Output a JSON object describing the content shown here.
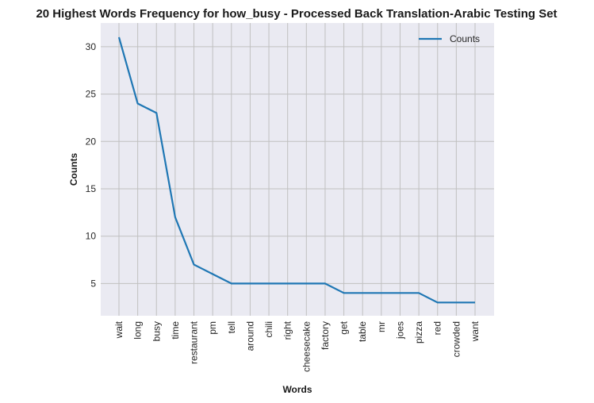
{
  "chart_data": {
    "type": "line",
    "title": "20 Highest Words Frequency for how_busy - Processed Back Translation-Arabic Testing Set",
    "xlabel": "Words",
    "ylabel": "Counts",
    "categories": [
      "wait",
      "long",
      "busy",
      "time",
      "restaurant",
      "pm",
      "tell",
      "around",
      "chili",
      "right",
      "cheesecake",
      "factory",
      "get",
      "table",
      "mr",
      "joes",
      "pizza",
      "red",
      "crowded",
      "want"
    ],
    "series": [
      {
        "name": "Counts",
        "values": [
          31,
          24,
          23,
          12,
          7,
          6,
          5,
          5,
          5,
          5,
          5,
          5,
          4,
          4,
          4,
          4,
          4,
          3,
          3,
          3
        ]
      }
    ],
    "ylim": [
      1.6,
      32.5
    ],
    "yticks": [
      5,
      10,
      15,
      20,
      25,
      30
    ],
    "grid": true,
    "legend": "top-right",
    "colors": {
      "line": "#1f77b4",
      "background": "#eaeaf2",
      "grid": "#c0c0c0"
    }
  }
}
